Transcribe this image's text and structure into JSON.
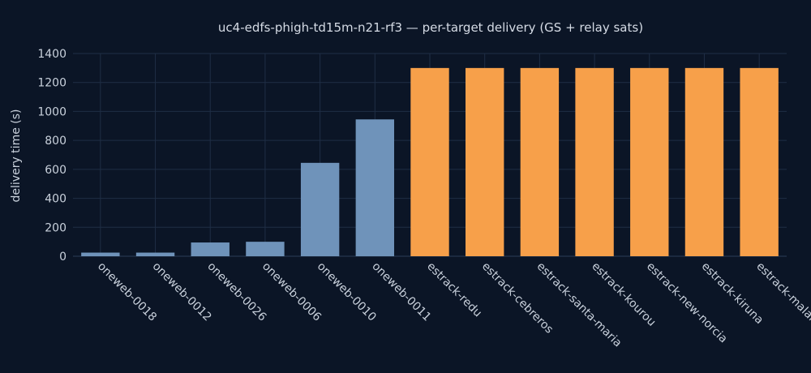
{
  "chart_data": {
    "type": "bar",
    "title": "uc4-edfs-phigh-td15m-n21-rf3 — per-target delivery (GS + relay sats)",
    "xlabel": "",
    "ylabel": "delivery time (s)",
    "ylim": [
      0,
      1400
    ],
    "yticks": [
      0,
      200,
      400,
      600,
      800,
      1000,
      1200,
      1400
    ],
    "grid": true,
    "legend": "none",
    "categories": [
      "oneweb-0018",
      "oneweb-0012",
      "oneweb-0026",
      "oneweb-0006",
      "oneweb-0010",
      "oneweb-0011",
      "estrack-redu",
      "estrack-cebreros",
      "estrack-santa-maria",
      "estrack-kourou",
      "estrack-new-norcia",
      "estrack-kiruna",
      "estrack-malargue"
    ],
    "values": [
      25,
      25,
      95,
      100,
      645,
      945,
      1300,
      1300,
      1300,
      1300,
      1300,
      1300,
      1300
    ],
    "bar_colors": [
      "#6f93ba",
      "#6f93ba",
      "#6f93ba",
      "#6f93ba",
      "#6f93ba",
      "#6f93ba",
      "#f7a04a",
      "#f7a04a",
      "#f7a04a",
      "#f7a04a",
      "#f7a04a",
      "#f7a04a",
      "#f7a04a"
    ]
  },
  "colors": {
    "background": "#0b1526",
    "grid": "#1f2e45",
    "text": "#c9d1dc",
    "satellite_bar": "#6f93ba",
    "ground_station_bar": "#f7a04a"
  }
}
